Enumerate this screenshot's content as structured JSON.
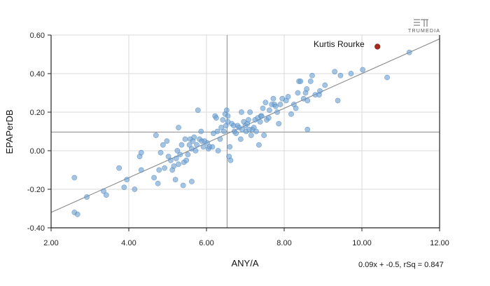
{
  "brand": {
    "logo_text": "TRUMEDIA"
  },
  "regression_label": "0.09x + -0.5, rSq = 0.847",
  "chart_data": {
    "type": "scatter",
    "title": "",
    "xlabel": "ANY/A",
    "ylabel": "EPAPerDB",
    "xlim": [
      2.0,
      12.0
    ],
    "ylim": [
      -0.4,
      0.6
    ],
    "xticks": [
      "2.00",
      "4.00",
      "6.00",
      "8.00",
      "10.00",
      "12.00"
    ],
    "yticks": [
      "0.60",
      "0.40",
      "0.20",
      "0.00",
      "-0.20",
      "-0.40"
    ],
    "grid": true,
    "reference_lines": {
      "x": 6.53,
      "y": 0.097
    },
    "regression": {
      "slope": 0.09,
      "intercept": -0.5,
      "x_range": [
        2.0,
        12.0
      ]
    },
    "highlight": {
      "label": "Kurtis Rourke",
      "x": 10.4,
      "y": 0.54,
      "color": "#a52a1e"
    },
    "point_color": "#6c9fd1",
    "points": [
      [
        2.6,
        -0.14
      ],
      [
        2.6,
        -0.32
      ],
      [
        2.68,
        -0.33
      ],
      [
        2.92,
        -0.24
      ],
      [
        3.35,
        -0.21
      ],
      [
        3.42,
        -0.23
      ],
      [
        3.75,
        -0.09
      ],
      [
        3.88,
        -0.19
      ],
      [
        3.95,
        -0.15
      ],
      [
        4.15,
        -0.2
      ],
      [
        4.28,
        -0.03
      ],
      [
        4.32,
        -0.01
      ],
      [
        4.32,
        -0.1
      ],
      [
        4.65,
        -0.14
      ],
      [
        4.7,
        0.08
      ],
      [
        4.75,
        -0.17
      ],
      [
        4.78,
        -0.1
      ],
      [
        4.82,
        -0.01
      ],
      [
        4.88,
        0.03
      ],
      [
        4.92,
        -0.09
      ],
      [
        4.98,
        0.05
      ],
      [
        5.02,
        -0.03
      ],
      [
        5.08,
        -0.05
      ],
      [
        5.12,
        -0.1
      ],
      [
        5.16,
        -0.08
      ],
      [
        5.2,
        -0.15
      ],
      [
        5.22,
        -0.04
      ],
      [
        5.25,
        0.0
      ],
      [
        5.28,
        -0.07
      ],
      [
        5.28,
        0.12
      ],
      [
        5.32,
        -0.02
      ],
      [
        5.36,
        0.03
      ],
      [
        5.4,
        -0.18
      ],
      [
        5.42,
        -0.06
      ],
      [
        5.45,
        0.06
      ],
      [
        5.48,
        -0.05
      ],
      [
        5.52,
        -0.02
      ],
      [
        5.56,
        0.03
      ],
      [
        5.58,
        0.06
      ],
      [
        5.62,
        0.01
      ],
      [
        5.62,
        -0.16
      ],
      [
        5.65,
        0.05
      ],
      [
        5.68,
        0.07
      ],
      [
        5.72,
        0.0
      ],
      [
        5.75,
        0.03
      ],
      [
        5.78,
        0.21
      ],
      [
        5.82,
        0.06
      ],
      [
        5.86,
        0.1
      ],
      [
        5.88,
        0.05
      ],
      [
        5.92,
        0.02
      ],
      [
        5.95,
        0.05
      ],
      [
        6.02,
        0.04
      ],
      [
        6.05,
        0.01
      ],
      [
        6.08,
        0.02
      ],
      [
        6.15,
        0.02
      ],
      [
        6.18,
        0.09
      ],
      [
        6.22,
        0.18
      ],
      [
        6.25,
        0.17
      ],
      [
        6.28,
        0.1
      ],
      [
        6.3,
        0.0
      ],
      [
        6.35,
        0.06
      ],
      [
        6.38,
        0.12
      ],
      [
        6.42,
        0.16
      ],
      [
        6.45,
        0.1
      ],
      [
        6.48,
        0.19
      ],
      [
        6.5,
        0.13
      ],
      [
        6.52,
        0.21
      ],
      [
        6.55,
        0.18
      ],
      [
        6.55,
        0.15
      ],
      [
        6.58,
        -0.03
      ],
      [
        6.6,
        0.02
      ],
      [
        6.62,
        -0.05
      ],
      [
        6.65,
        0.14
      ],
      [
        6.7,
        0.13
      ],
      [
        6.72,
        0.1
      ],
      [
        6.76,
        0.09
      ],
      [
        6.8,
        0.13
      ],
      [
        6.84,
        0.12
      ],
      [
        6.88,
        0.06
      ],
      [
        6.9,
        0.2
      ],
      [
        6.92,
        0.11
      ],
      [
        6.96,
        0.15
      ],
      [
        7.0,
        0.13
      ],
      [
        7.02,
        0.1
      ],
      [
        7.05,
        0.14
      ],
      [
        7.08,
        0.16
      ],
      [
        7.1,
        0.11
      ],
      [
        7.12,
        0.2
      ],
      [
        7.15,
        0.08
      ],
      [
        7.18,
        0.11
      ],
      [
        7.22,
        0.12
      ],
      [
        7.25,
        0.16
      ],
      [
        7.28,
        0.1
      ],
      [
        7.32,
        0.17
      ],
      [
        7.35,
        0.03
      ],
      [
        7.38,
        0.15
      ],
      [
        7.4,
        0.18
      ],
      [
        7.42,
        0.18
      ],
      [
        7.45,
        0.22
      ],
      [
        7.48,
        0.08
      ],
      [
        7.52,
        0.25
      ],
      [
        7.55,
        0.16
      ],
      [
        7.6,
        0.17
      ],
      [
        7.62,
        0.21
      ],
      [
        7.68,
        0.24
      ],
      [
        7.72,
        0.27
      ],
      [
        7.75,
        0.24
      ],
      [
        7.78,
        0.23
      ],
      [
        7.82,
        0.2
      ],
      [
        7.86,
        0.14
      ],
      [
        7.9,
        0.24
      ],
      [
        7.95,
        0.27
      ],
      [
        8.05,
        0.26
      ],
      [
        8.1,
        0.28
      ],
      [
        8.18,
        0.19
      ],
      [
        8.25,
        0.24
      ],
      [
        8.3,
        0.22
      ],
      [
        8.35,
        0.3
      ],
      [
        8.38,
        0.36
      ],
      [
        8.42,
        0.36
      ],
      [
        8.5,
        0.27
      ],
      [
        8.55,
        0.3
      ],
      [
        8.58,
        0.32
      ],
      [
        8.6,
        0.26
      ],
      [
        8.6,
        0.11
      ],
      [
        8.68,
        0.36
      ],
      [
        8.72,
        0.39
      ],
      [
        8.8,
        0.29
      ],
      [
        8.9,
        0.29
      ],
      [
        8.92,
        0.31
      ],
      [
        9.05,
        0.34
      ],
      [
        9.3,
        0.41
      ],
      [
        9.38,
        0.26
      ],
      [
        9.45,
        0.39
      ],
      [
        9.72,
        0.4
      ],
      [
        10.02,
        0.42
      ],
      [
        10.65,
        0.38
      ],
      [
        11.22,
        0.51
      ]
    ]
  }
}
